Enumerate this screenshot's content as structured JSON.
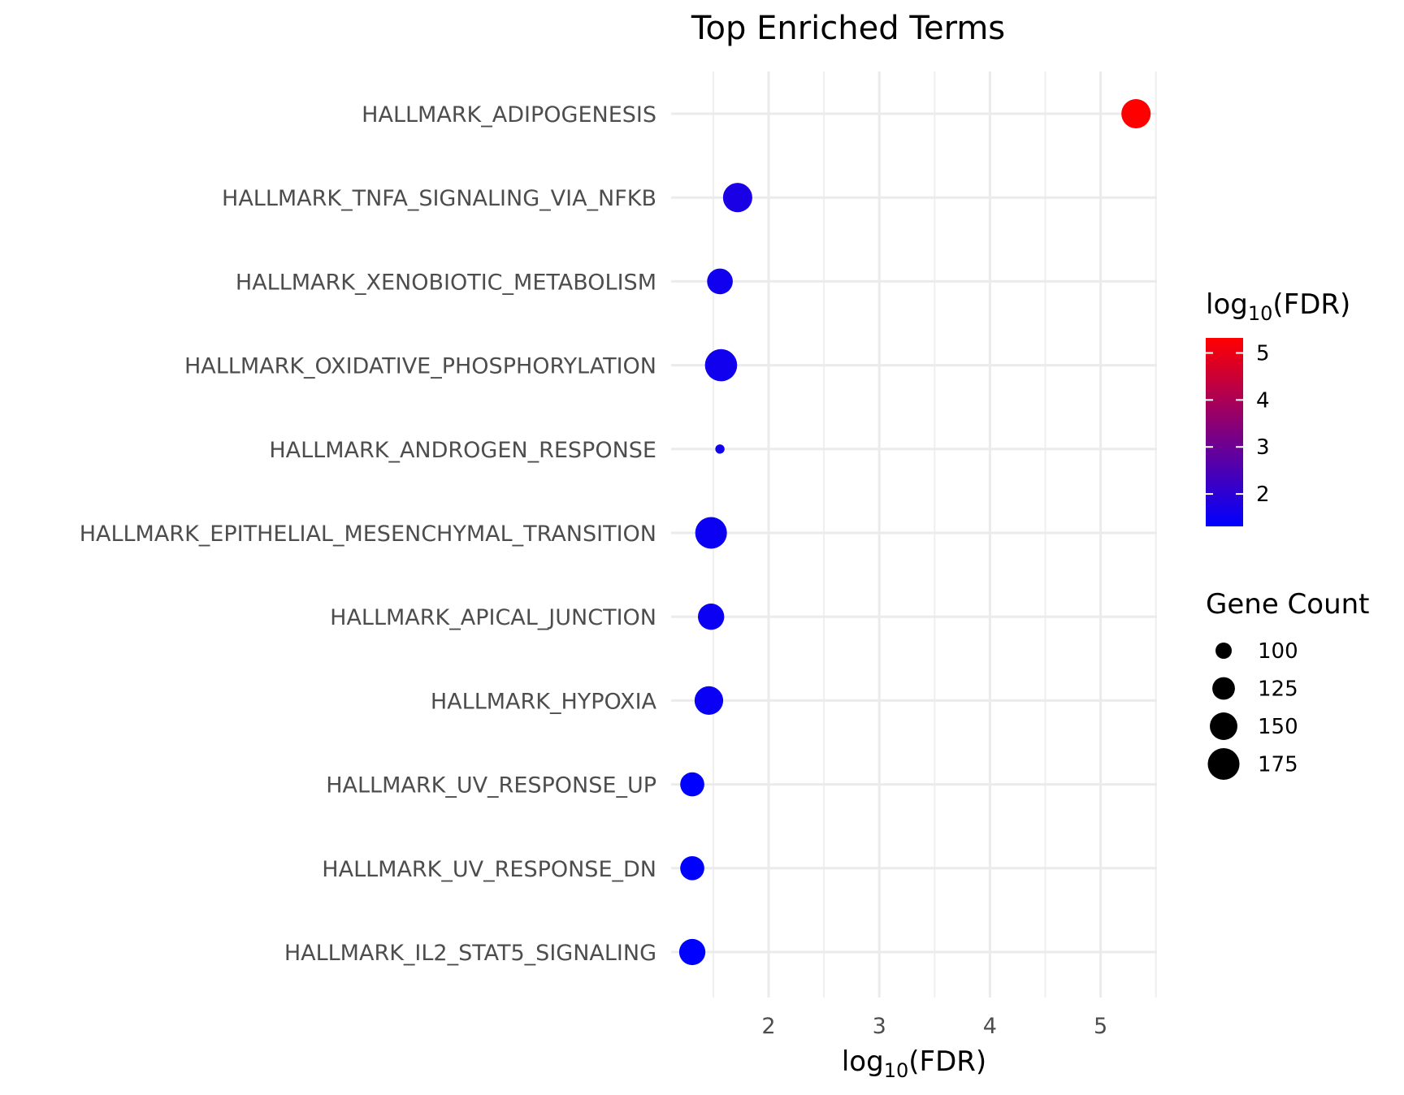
{
  "chart_data": {
    "type": "scatter",
    "title": "Top Enriched Terms",
    "xlabel_main": "log",
    "xlabel_sub": "10",
    "xlabel_tail": "(FDR)",
    "x_ticks": [
      2,
      3,
      4,
      5
    ],
    "xlim": [
      1.5,
      5.5
    ],
    "grid": true,
    "categories": [
      "HALLMARK_ADIPOGENESIS",
      "HALLMARK_TNFA_SIGNALING_VIA_NFKB",
      "HALLMARK_XENOBIOTIC_METABOLISM",
      "HALLMARK_OXIDATIVE_PHOSPHORYLATION",
      "HALLMARK_ANDROGEN_RESPONSE",
      "HALLMARK_EPITHELIAL_MESENCHYMAL_TRANSITION",
      "HALLMARK_APICAL_JUNCTION",
      "HALLMARK_HYPOXIA",
      "HALLMARK_UV_RESPONSE_UP",
      "HALLMARK_UV_RESPONSE_DN",
      "HALLMARK_IL2_STAT5_SIGNALING"
    ],
    "x": [
      5.32,
      1.72,
      1.56,
      1.57,
      1.56,
      1.48,
      1.48,
      1.46,
      1.31,
      1.31,
      1.31
    ],
    "gene_count": [
      160,
      160,
      140,
      178,
      82,
      175,
      143,
      156,
      132,
      132,
      143
    ],
    "color_legend": {
      "title_main": "log",
      "title_sub": "10",
      "title_tail": "(FDR)",
      "ticks": [
        2,
        3,
        4,
        5
      ],
      "range": [
        1.31,
        5.32
      ],
      "low_color": "#0000ff",
      "high_color": "#ff0000",
      "placement": "right"
    },
    "size_legend": {
      "title": "Gene Count",
      "values": [
        100,
        125,
        150,
        175
      ],
      "placement": "right"
    }
  }
}
